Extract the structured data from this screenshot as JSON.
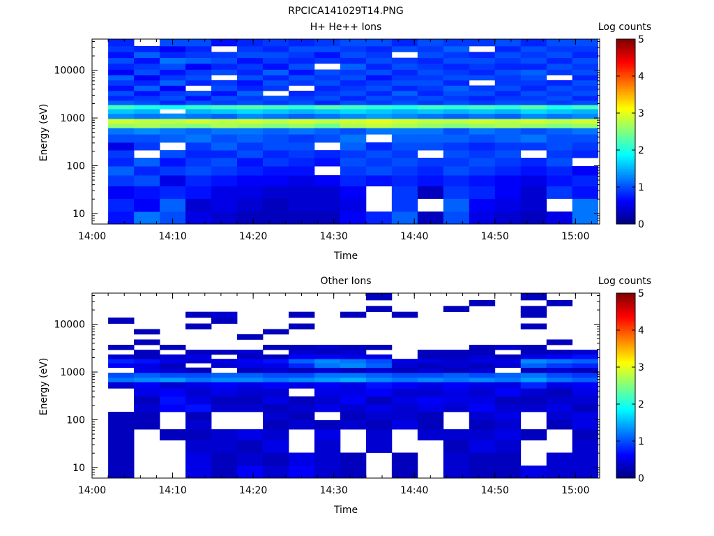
{
  "figure_title": "RPCICA141029T14.PNG",
  "chart_data": [
    {
      "type": "heatmap",
      "title": "H+ He++ Ions",
      "xlabel": "Time",
      "ylabel": "Energy (eV)",
      "colorbar_label": "Log counts",
      "colorbar_ticks": [
        "0",
        "1",
        "2",
        "3",
        "4",
        "5"
      ],
      "clim": [
        0,
        5
      ],
      "x_ticks": [
        "14:00",
        "14:10",
        "14:20",
        "14:30",
        "14:40",
        "14:50",
        "15:00"
      ],
      "x_range_minutes_after": [
        "14:00",
        "15:03"
      ],
      "y_ticks": [
        "10",
        "100",
        "1000",
        "10000"
      ],
      "y_scale": "log",
      "y_range": [
        6,
        45000
      ],
      "time_start": "14:02",
      "time_step_min": 3.2,
      "energy_bins": [
        8,
        15,
        28,
        50,
        80,
        120,
        180,
        250,
        380,
        550,
        700,
        850,
        1100,
        1400,
        1700,
        2100,
        2600,
        3300,
        4200,
        5500,
        7000,
        9000,
        12000,
        16000,
        21000,
        28000,
        37000
      ],
      "columns": [
        [
          0.7,
          0.8,
          0.6,
          0.9,
          1.1,
          0.8,
          0.9,
          0.5,
          1.0,
          1.2,
          2.6,
          2.9,
          1.3,
          1.6,
          2.2,
          1.1,
          0.8,
          1.0,
          0.7,
          0.9,
          1.1,
          0.6,
          0.8,
          1.0,
          0.7,
          0.9,
          0.8
        ],
        [
          1.2,
          0.6,
          0.7,
          1.0,
          0.8,
          1.1,
          null,
          0.9,
          1.0,
          1.3,
          2.7,
          2.8,
          1.2,
          1.5,
          2.0,
          1.0,
          0.9,
          0.7,
          1.1,
          0.8,
          0.6,
          1.0,
          0.9,
          0.7,
          1.1,
          0.8,
          null
        ],
        [
          1.0,
          1.1,
          0.8,
          0.5,
          0.9,
          0.7,
          1.0,
          null,
          1.1,
          1.2,
          2.6,
          2.8,
          1.3,
          null,
          1.9,
          0.8,
          1.0,
          0.9,
          0.6,
          1.1,
          0.9,
          0.7,
          1.0,
          1.2,
          0.8,
          0.6,
          1.0
        ],
        [
          0.5,
          0.4,
          0.7,
          0.8,
          1.0,
          0.9,
          0.8,
          0.9,
          1.2,
          1.1,
          2.5,
          2.9,
          1.2,
          1.5,
          2.1,
          1.0,
          0.7,
          1.0,
          null,
          0.8,
          1.0,
          0.9,
          0.6,
          1.1,
          0.9,
          0.8,
          1.0
        ],
        [
          0.4,
          0.5,
          0.5,
          0.7,
          0.9,
          1.0,
          0.8,
          1.1,
          1.0,
          1.2,
          2.7,
          2.8,
          1.1,
          1.6,
          2.2,
          0.9,
          1.0,
          0.7,
          1.0,
          0.9,
          null,
          1.0,
          0.8,
          1.0,
          0.9,
          null,
          0.7
        ],
        [
          0.3,
          0.4,
          0.5,
          0.6,
          0.8,
          0.7,
          1.0,
          0.9,
          1.1,
          1.2,
          2.6,
          2.9,
          1.3,
          1.7,
          2.3,
          1.0,
          0.9,
          1.1,
          0.8,
          0.7,
          1.0,
          0.8,
          0.9,
          0.7,
          1.0,
          0.9,
          0.8
        ],
        [
          0.3,
          0.3,
          0.4,
          0.6,
          0.7,
          0.9,
          0.8,
          1.0,
          1.0,
          1.1,
          2.5,
          2.8,
          1.2,
          1.6,
          2.2,
          0.9,
          1.0,
          null,
          0.9,
          1.0,
          0.8,
          1.1,
          0.7,
          0.9,
          1.0,
          0.8,
          0.9
        ],
        [
          0.3,
          0.4,
          0.4,
          0.5,
          0.7,
          0.8,
          0.9,
          1.0,
          0.9,
          1.2,
          2.6,
          2.9,
          1.1,
          1.5,
          2.1,
          1.0,
          0.9,
          0.8,
          null,
          0.9,
          1.0,
          0.7,
          1.0,
          0.8,
          0.9,
          1.0,
          0.8
        ],
        [
          0.3,
          0.4,
          0.4,
          0.6,
          null,
          0.7,
          0.8,
          null,
          1.0,
          1.1,
          2.4,
          2.8,
          1.2,
          1.6,
          2.3,
          0.8,
          1.0,
          0.9,
          0.8,
          1.0,
          0.9,
          1.0,
          null,
          0.9,
          0.7,
          1.0,
          0.9
        ],
        [
          0.6,
          0.5,
          0.6,
          0.8,
          0.9,
          1.0,
          0.9,
          1.1,
          1.2,
          1.0,
          2.7,
          2.9,
          1.3,
          1.7,
          2.2,
          1.0,
          0.8,
          1.0,
          0.9,
          0.8,
          1.0,
          0.9,
          1.1,
          0.8,
          1.0,
          0.9,
          1.0
        ],
        [
          0.8,
          null,
          null,
          0.7,
          1.0,
          0.9,
          1.0,
          0.8,
          null,
          1.2,
          2.8,
          3.0,
          1.4,
          1.6,
          2.1,
          0.9,
          1.0,
          0.8,
          1.0,
          0.9,
          0.7,
          1.0,
          0.8,
          1.0,
          0.9,
          0.8,
          1.0
        ],
        [
          1.1,
          0.9,
          0.9,
          0.8,
          0.9,
          1.0,
          0.9,
          1.0,
          1.1,
          1.2,
          2.7,
          2.9,
          1.3,
          1.5,
          2.0,
          1.0,
          0.9,
          1.1,
          0.8,
          1.0,
          0.9,
          0.8,
          1.0,
          0.9,
          null,
          1.0,
          0.8
        ],
        [
          0.3,
          null,
          0.3,
          0.7,
          0.8,
          0.9,
          null,
          1.0,
          1.1,
          1.2,
          2.6,
          2.8,
          1.2,
          1.6,
          2.2,
          0.9,
          1.0,
          0.8,
          0.9,
          1.0,
          0.9,
          1.0,
          0.9,
          0.8,
          1.0,
          0.9,
          1.0
        ],
        [
          1.0,
          1.1,
          0.9,
          0.8,
          1.0,
          0.9,
          1.0,
          0.9,
          1.1,
          1.0,
          2.5,
          2.8,
          1.1,
          1.5,
          2.1,
          1.0,
          0.9,
          1.0,
          1.1,
          0.8,
          1.0,
          0.9,
          0.8,
          1.0,
          0.9,
          1.1,
          0.9
        ],
        [
          0.5,
          0.6,
          0.8,
          0.7,
          0.9,
          1.0,
          0.9,
          0.8,
          1.0,
          1.2,
          2.6,
          2.9,
          1.2,
          1.6,
          2.2,
          0.9,
          0.8,
          1.0,
          0.9,
          null,
          1.0,
          0.8,
          0.9,
          1.0,
          0.8,
          null,
          0.9
        ],
        [
          0.4,
          0.5,
          0.6,
          0.6,
          0.8,
          0.9,
          1.0,
          0.9,
          1.1,
          1.1,
          2.7,
          2.8,
          1.1,
          1.5,
          2.1,
          1.0,
          0.9,
          0.8,
          1.0,
          0.9,
          0.9,
          1.0,
          0.8,
          0.9,
          1.0,
          0.8,
          1.0
        ],
        [
          0.3,
          0.4,
          0.4,
          0.5,
          0.7,
          0.8,
          null,
          0.9,
          1.2,
          1.0,
          2.6,
          2.9,
          1.3,
          1.7,
          2.3,
          1.0,
          0.9,
          1.0,
          0.8,
          0.9,
          1.0,
          1.1,
          0.8,
          1.0,
          0.9,
          1.0,
          0.8
        ],
        [
          0.5,
          null,
          0.9,
          0.7,
          0.8,
          1.0,
          0.9,
          1.0,
          1.0,
          1.1,
          2.5,
          2.8,
          1.2,
          1.6,
          2.0,
          0.9,
          1.0,
          0.9,
          1.0,
          0.8,
          null,
          0.9,
          1.0,
          0.8,
          1.0,
          0.9,
          1.0
        ],
        [
          1.2,
          1.2,
          0.7,
          0.8,
          0.6,
          null,
          0.8,
          0.9,
          1.0,
          1.2,
          2.6,
          2.9,
          1.3,
          1.5,
          2.2,
          1.0,
          0.8,
          1.0,
          0.9,
          1.0,
          0.8,
          1.0,
          0.9,
          1.0,
          0.8,
          0.9,
          1.0
        ]
      ]
    },
    {
      "type": "heatmap",
      "title": "Other Ions",
      "xlabel": "Time",
      "ylabel": "Energy (eV)",
      "colorbar_label": "Log counts",
      "colorbar_ticks": [
        "0",
        "1",
        "2",
        "3",
        "4",
        "5"
      ],
      "clim": [
        0,
        5
      ],
      "x_ticks": [
        "14:00",
        "14:10",
        "14:20",
        "14:30",
        "14:40",
        "14:50",
        "15:00"
      ],
      "y_ticks": [
        "10",
        "100",
        "1000",
        "10000"
      ],
      "y_scale": "log",
      "y_range": [
        6,
        45000
      ],
      "time_start": "14:02",
      "time_step_min": 3.2,
      "energy_bins": [
        8,
        15,
        28,
        50,
        80,
        120,
        180,
        250,
        380,
        550,
        700,
        850,
        1100,
        1400,
        1700,
        2100,
        2600,
        3300,
        4200,
        5500,
        7000,
        9000,
        12000,
        16000,
        21000,
        28000,
        37000
      ],
      "columns": [
        [
          0.3,
          0.3,
          0.3,
          0.3,
          0.3,
          0.3,
          null,
          null,
          null,
          0.4,
          1.2,
          1.0,
          null,
          0.6,
          0.8,
          0.4,
          null,
          0.3,
          null,
          null,
          null,
          null,
          0.3,
          null,
          null,
          null,
          null
        ],
        [
          null,
          null,
          null,
          null,
          0.3,
          0.3,
          0.4,
          0.3,
          0.5,
          0.6,
          1.3,
          1.1,
          0.5,
          0.5,
          0.7,
          0.3,
          0.3,
          null,
          0.3,
          null,
          0.3,
          null,
          null,
          null,
          null,
          null,
          null
        ],
        [
          null,
          null,
          null,
          0.3,
          null,
          null,
          0.6,
          0.7,
          0.6,
          0.4,
          1.4,
          1.0,
          0.4,
          0.3,
          0.5,
          0.4,
          null,
          0.3,
          null,
          null,
          null,
          null,
          null,
          null,
          null,
          null,
          null
        ],
        [
          0.5,
          0.5,
          0.4,
          0.3,
          0.4,
          0.3,
          0.7,
          0.5,
          0.4,
          0.5,
          1.2,
          1.0,
          0.3,
          null,
          0.4,
          0.5,
          0.3,
          null,
          null,
          null,
          null,
          0.3,
          null,
          0.3,
          null,
          null,
          null
        ],
        [
          0.3,
          0.3,
          0.4,
          0.4,
          null,
          null,
          0.4,
          0.3,
          0.5,
          0.6,
          1.3,
          1.1,
          null,
          0.4,
          0.5,
          null,
          0.3,
          null,
          null,
          null,
          null,
          null,
          0.3,
          0.4,
          null,
          null,
          null
        ],
        [
          0.6,
          0.4,
          0.3,
          0.5,
          null,
          null,
          0.4,
          0.3,
          0.4,
          0.5,
          1.3,
          1.1,
          0.3,
          0.5,
          0.6,
          0.3,
          0.4,
          null,
          null,
          0.3,
          null,
          null,
          null,
          null,
          null,
          null,
          null
        ],
        [
          0.4,
          0.3,
          0.5,
          0.4,
          0.3,
          0.4,
          0.3,
          0.5,
          0.4,
          0.6,
          1.2,
          1.0,
          0.4,
          0.5,
          0.7,
          0.3,
          null,
          0.3,
          null,
          null,
          0.3,
          null,
          null,
          null,
          null,
          null,
          null
        ],
        [
          0.6,
          0.5,
          null,
          null,
          0.4,
          0.3,
          0.4,
          0.3,
          null,
          0.5,
          1.3,
          1.0,
          0.3,
          0.8,
          1.1,
          0.6,
          0.4,
          0.3,
          null,
          null,
          null,
          0.3,
          null,
          0.3,
          null,
          null,
          null
        ],
        [
          0.4,
          0.4,
          0.4,
          0.5,
          0.3,
          null,
          0.5,
          0.4,
          0.5,
          0.6,
          1.4,
          1.2,
          0.4,
          1.2,
          1.3,
          0.6,
          0.3,
          0.4,
          null,
          null,
          null,
          null,
          null,
          null,
          null,
          null,
          null
        ],
        [
          0.3,
          0.3,
          null,
          null,
          0.4,
          0.3,
          0.4,
          0.6,
          0.5,
          0.5,
          1.5,
          1.2,
          0.3,
          1.3,
          1.2,
          0.5,
          0.4,
          0.3,
          null,
          null,
          null,
          null,
          null,
          0.3,
          null,
          null,
          null
        ],
        [
          null,
          null,
          0.4,
          0.4,
          0.3,
          0.4,
          0.5,
          0.3,
          0.6,
          0.7,
          1.3,
          1.1,
          0.4,
          1.1,
          1.0,
          0.5,
          null,
          0.3,
          null,
          null,
          null,
          null,
          null,
          null,
          0.3,
          null,
          0.3
        ],
        [
          0.3,
          0.3,
          null,
          null,
          0.5,
          0.4,
          0.4,
          0.5,
          0.4,
          0.6,
          1.2,
          1.0,
          0.3,
          0.4,
          0.5,
          null,
          null,
          null,
          null,
          null,
          null,
          null,
          null,
          0.3,
          null,
          null,
          null
        ],
        [
          null,
          null,
          null,
          0.4,
          0.3,
          0.3,
          0.5,
          0.6,
          0.4,
          0.5,
          1.3,
          1.0,
          0.4,
          0.3,
          0.5,
          0.3,
          0.3,
          null,
          null,
          null,
          null,
          null,
          null,
          null,
          null,
          null,
          null
        ],
        [
          0.4,
          0.4,
          0.3,
          0.4,
          null,
          null,
          0.4,
          0.5,
          0.5,
          0.6,
          1.2,
          1.1,
          0.3,
          0.4,
          0.4,
          0.3,
          0.3,
          null,
          null,
          null,
          null,
          null,
          null,
          null,
          0.3,
          null,
          null
        ],
        [
          0.3,
          0.3,
          0.5,
          0.4,
          0.3,
          0.4,
          0.6,
          0.5,
          0.4,
          0.5,
          1.3,
          1.0,
          0.4,
          0.3,
          0.5,
          0.4,
          0.3,
          0.3,
          null,
          null,
          null,
          null,
          null,
          null,
          null,
          0.3,
          null
        ],
        [
          0.3,
          0.3,
          0.4,
          0.5,
          0.4,
          0.5,
          0.4,
          0.3,
          0.6,
          0.5,
          1.2,
          1.1,
          null,
          0.4,
          0.5,
          0.3,
          null,
          0.4,
          null,
          null,
          null,
          null,
          null,
          null,
          null,
          null,
          null
        ],
        [
          0.5,
          null,
          null,
          0.3,
          null,
          null,
          0.4,
          0.3,
          0.4,
          0.8,
          1.4,
          1.2,
          0.3,
          1.1,
          1.3,
          0.5,
          0.3,
          0.3,
          null,
          null,
          null,
          0.3,
          null,
          0.3,
          0.3,
          null,
          0.3
        ],
        [
          0.4,
          0.4,
          null,
          null,
          0.3,
          0.4,
          0.5,
          0.4,
          0.3,
          0.5,
          1.2,
          1.0,
          0.4,
          0.9,
          1.2,
          0.6,
          0.3,
          null,
          0.3,
          null,
          null,
          null,
          null,
          null,
          null,
          0.3,
          null
        ],
        [
          0.4,
          0.4,
          0.4,
          0.3,
          0.5,
          0.5,
          0.3,
          0.4,
          0.5,
          0.6,
          1.1,
          0.9,
          0.3,
          0.8,
          1.1,
          0.7,
          0.4,
          null,
          null,
          null,
          null,
          null,
          null,
          null,
          null,
          null,
          null
        ]
      ]
    }
  ]
}
